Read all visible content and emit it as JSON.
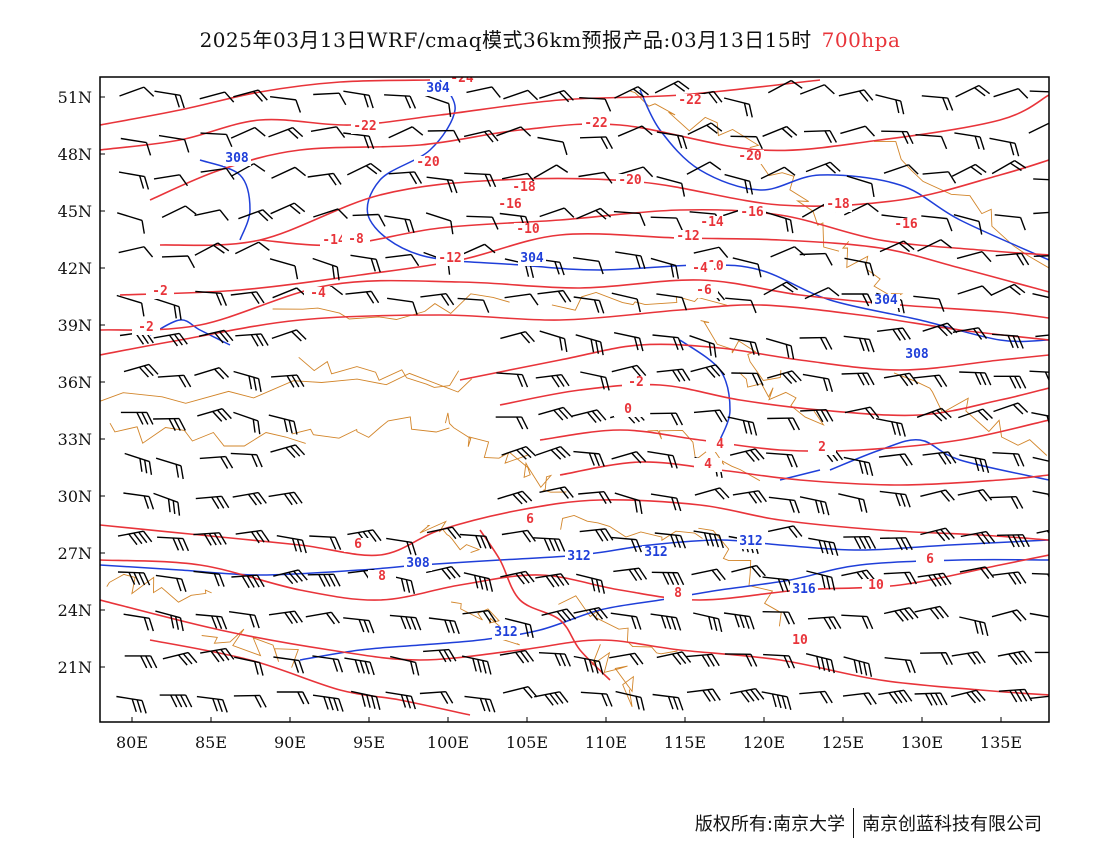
{
  "title": {
    "main": "2025年03月13日WRF/cmaq模式36km预报产品:03月13日15时",
    "level": "700hpa",
    "level_color": "#e8343a"
  },
  "axes": {
    "x_ticks": [
      "80E",
      "85E",
      "90E",
      "95E",
      "100E",
      "105E",
      "110E",
      "115E",
      "120E",
      "125E",
      "130E",
      "135E"
    ],
    "y_ticks": [
      "51N",
      "48N",
      "45N",
      "42N",
      "39N",
      "36N",
      "33N",
      "30N",
      "27N",
      "24N",
      "21N"
    ]
  },
  "colors": {
    "temperature_contour": "#e8343a",
    "height_contour": "#1f3fd9",
    "boundary": "#d2852a",
    "wind_barb": "#000000"
  },
  "temperature_labels": [
    "-24",
    "-22",
    "-22",
    "-22",
    "-20",
    "-20",
    "-20",
    "-18",
    "-18",
    "-16",
    "-16",
    "-16",
    "-14",
    "-14",
    "-12",
    "-12",
    "-10",
    "-10",
    "-8",
    "-6",
    "-4",
    "-4",
    "-2",
    "-2",
    "-2",
    "0",
    "2",
    "4",
    "4",
    "6",
    "6",
    "6",
    "8",
    "8",
    "10",
    "10"
  ],
  "height_labels": [
    "304",
    "304",
    "304",
    "308",
    "308",
    "308",
    "312",
    "312",
    "312",
    "312",
    "316"
  ],
  "footer": {
    "left": "版权所有:南京大学",
    "right": "南京创蓝科技有限公司"
  }
}
